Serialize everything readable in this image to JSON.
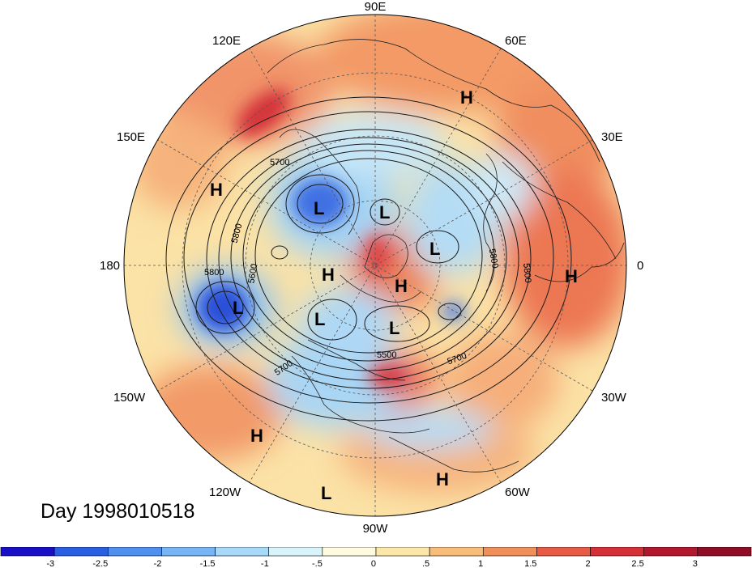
{
  "title": "Day 1998010518",
  "longitude_labels": {
    "n90e": "90E",
    "n60e": "60E",
    "n30e": "30E",
    "n0": "0",
    "n30w": "30W",
    "n60w": "60W",
    "n90w": "90W",
    "n120w": "120W",
    "n150w": "150W",
    "n180": "180",
    "n150e": "150E",
    "n120e": "120E"
  },
  "pressure_centers": [
    {
      "name": "high-east-asia",
      "label": "H"
    },
    {
      "name": "high-north-pacific-west",
      "label": "H"
    },
    {
      "name": "low-siberia",
      "label": "L"
    },
    {
      "name": "low-arctic-north",
      "label": "L"
    },
    {
      "name": "high-arctic-west",
      "label": "H"
    },
    {
      "name": "high-arctic-central",
      "label": "H"
    },
    {
      "name": "low-europe-north",
      "label": "L"
    },
    {
      "name": "high-africa",
      "label": "H"
    },
    {
      "name": "low-gulf-alaska",
      "label": "L"
    },
    {
      "name": "low-canada",
      "label": "L"
    },
    {
      "name": "low-hudson",
      "label": "L"
    },
    {
      "name": "high-east-pacific",
      "label": "H"
    },
    {
      "name": "low-mexico-pacific",
      "label": "L"
    },
    {
      "name": "high-caribbean",
      "label": "H"
    }
  ],
  "contour_labels": [
    "5700",
    "5800",
    "5800",
    "5600",
    "5800",
    "5700",
    "5500",
    "5700",
    "5800"
  ],
  "colorbar": {
    "ticks": [
      "-3",
      "-2.5",
      "-2",
      "-1.5",
      "-1",
      "-.5",
      "0",
      ".5",
      "1",
      "1.5",
      "2",
      "2.5",
      "3"
    ],
    "colors": [
      "#1a0fc8",
      "#2a5fe3",
      "#4f8ff0",
      "#77b4f6",
      "#a7daf8",
      "#d9f3fa",
      "#fefbe0",
      "#fbe7a8",
      "#f8bd78",
      "#f18f5b",
      "#e95a45",
      "#d62f36",
      "#b3172d",
      "#8f0e26"
    ]
  },
  "legend_palette": {
    "strong_negative": "#1a0fc8",
    "negative": "#4f8ff0",
    "weak_negative": "#a7daf8",
    "neutral": "#fefbe0",
    "weak_positive": "#f8bd78",
    "positive": "#e95a45",
    "strong_positive": "#b3172d"
  }
}
